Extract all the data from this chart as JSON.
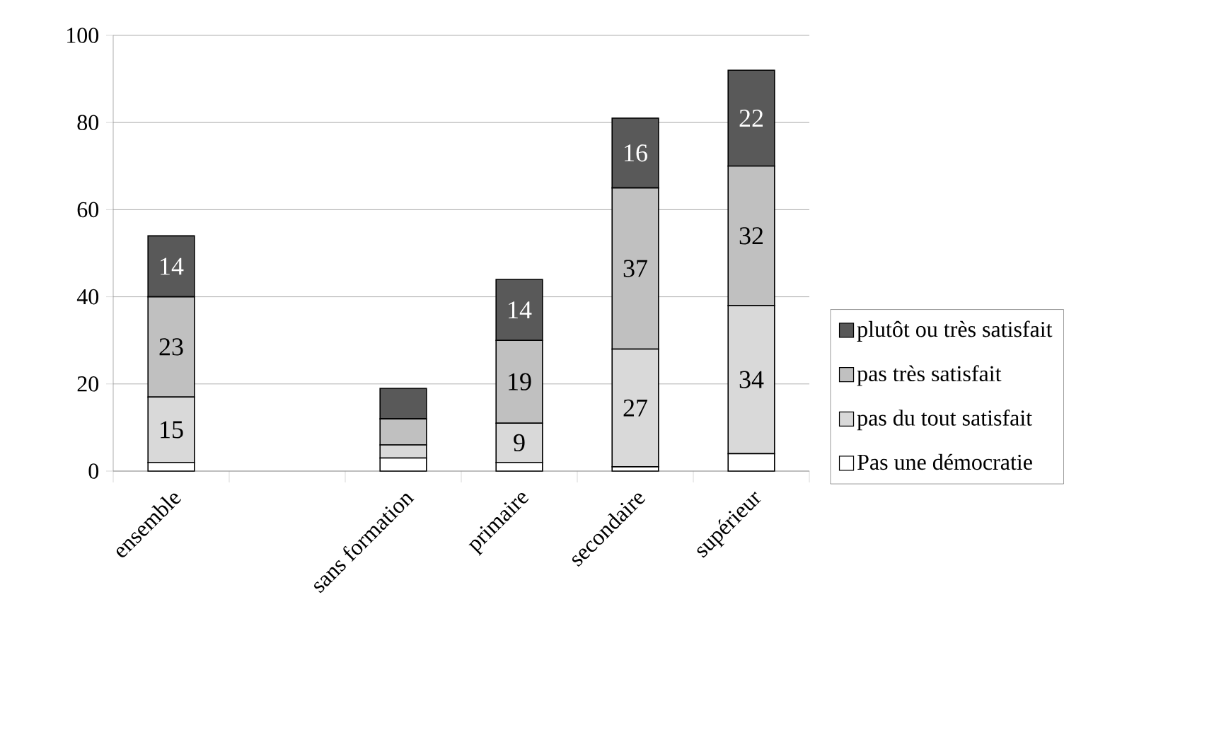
{
  "chart_data": {
    "type": "bar",
    "stacked": true,
    "categories": [
      "ensemble",
      null,
      "sans formation",
      "primaire",
      "secondaire",
      "supérieur"
    ],
    "series": [
      {
        "name": "Pas une démocratie",
        "color": "#ffffff",
        "values": [
          2,
          null,
          3,
          2,
          1,
          4
        ],
        "value_labels": [
          null,
          null,
          null,
          null,
          null,
          null
        ]
      },
      {
        "name": "pas du tout satisfait",
        "color": "#d9d9d9",
        "values": [
          15,
          null,
          3,
          9,
          27,
          34
        ],
        "value_labels": [
          "15",
          null,
          null,
          "9",
          "27",
          "34"
        ]
      },
      {
        "name": "pas très satisfait",
        "color": "#c0c0c0",
        "values": [
          23,
          null,
          6,
          19,
          37,
          32
        ],
        "value_labels": [
          "23",
          null,
          null,
          "19",
          "37",
          "32"
        ]
      },
      {
        "name": "plutôt ou très satisfait",
        "color": "#595959",
        "values": [
          14,
          null,
          7,
          14,
          16,
          22
        ],
        "value_labels": [
          "14",
          null,
          null,
          "14",
          "16",
          "22"
        ]
      }
    ],
    "ylim": [
      0,
      100
    ],
    "yticks": [
      0,
      20,
      40,
      60,
      80,
      100
    ],
    "grid": "y",
    "legend": "right"
  }
}
